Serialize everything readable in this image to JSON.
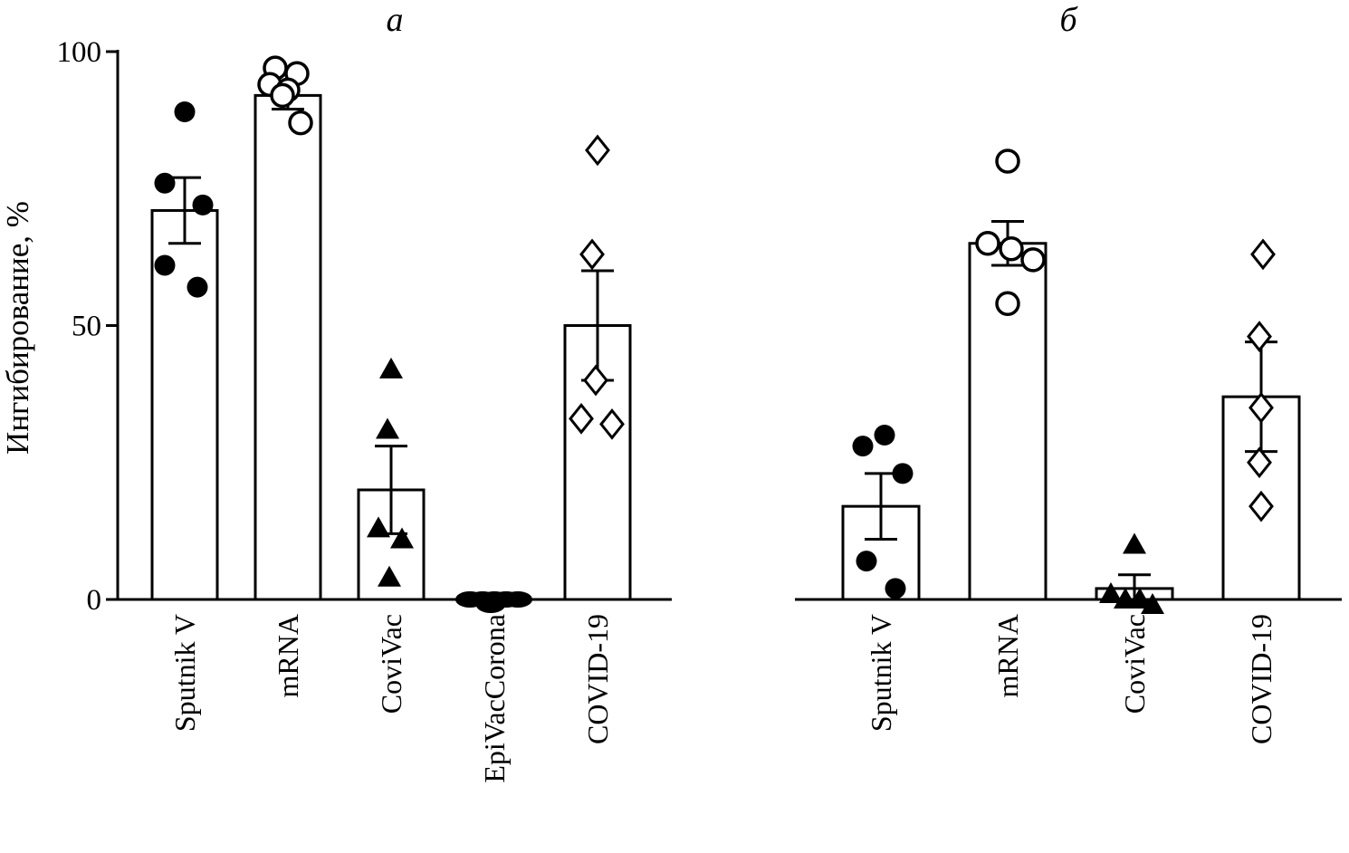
{
  "chart_data": {
    "type": "bar",
    "title": "",
    "ylabel": "Ингибирование, %",
    "ylim": [
      0,
      100
    ],
    "yticks": [
      0,
      50,
      100
    ],
    "grid": false,
    "legend": "none",
    "marker_color": "#000000",
    "bar_fill": "#ffffff",
    "bar_stroke": "#000000",
    "panels": [
      {
        "title": "а",
        "categories": [
          {
            "label": "Sputnik V",
            "marker": "filled-circle",
            "bar": 71,
            "err": 6,
            "points": [
              {
                "v": 89,
                "dx": 0
              },
              {
                "v": 76,
                "dx": -22
              },
              {
                "v": 72,
                "dx": 20
              },
              {
                "v": 61,
                "dx": -22
              },
              {
                "v": 57,
                "dx": 14
              }
            ]
          },
          {
            "label": "mRNA",
            "marker": "open-circle",
            "bar": 92,
            "err": 2.5,
            "points": [
              {
                "v": 97,
                "dx": -14
              },
              {
                "v": 96,
                "dx": 10
              },
              {
                "v": 94,
                "dx": -20
              },
              {
                "v": 93,
                "dx": 0
              },
              {
                "v": 92,
                "dx": -6
              },
              {
                "v": 87,
                "dx": 14
              }
            ]
          },
          {
            "label": "CoviVac",
            "marker": "filled-triangle",
            "bar": 20,
            "err": 8,
            "points": [
              {
                "v": 42,
                "dx": 0
              },
              {
                "v": 31,
                "dx": -4
              },
              {
                "v": 13,
                "dx": -14
              },
              {
                "v": 11,
                "dx": 12
              },
              {
                "v": 4,
                "dx": -2
              }
            ]
          },
          {
            "label": "EpiVacCorona",
            "marker": "filled-pill",
            "bar": 0,
            "err": 0,
            "points": [
              {
                "v": 0,
                "dx": -27
              },
              {
                "v": 0,
                "dx": -13
              },
              {
                "v": 0,
                "dx": 0
              },
              {
                "v": 0,
                "dx": 13
              },
              {
                "v": 0,
                "dx": 26
              },
              {
                "v": -1,
                "dx": -4
              }
            ]
          },
          {
            "label": "COVID-19",
            "marker": "open-diamond",
            "bar": 50,
            "err": 10,
            "points": [
              {
                "v": 82,
                "dx": 0
              },
              {
                "v": 63,
                "dx": -6
              },
              {
                "v": 40,
                "dx": -2
              },
              {
                "v": 33,
                "dx": -18
              },
              {
                "v": 32,
                "dx": 16
              }
            ]
          }
        ]
      },
      {
        "title": "б",
        "categories": [
          {
            "label": "Sputnik V",
            "marker": "filled-circle",
            "bar": 17,
            "err": 6,
            "points": [
              {
                "v": 30,
                "dx": 4
              },
              {
                "v": 28,
                "dx": -20
              },
              {
                "v": 23,
                "dx": 24
              },
              {
                "v": 7,
                "dx": -16
              },
              {
                "v": 2,
                "dx": 16
              }
            ]
          },
          {
            "label": "mRNA",
            "marker": "open-circle",
            "bar": 65,
            "err": 4,
            "points": [
              {
                "v": 80,
                "dx": 0
              },
              {
                "v": 65,
                "dx": -22
              },
              {
                "v": 64,
                "dx": 4
              },
              {
                "v": 62,
                "dx": 28
              },
              {
                "v": 54,
                "dx": 0
              }
            ]
          },
          {
            "label": "CoviVac",
            "marker": "filled-triangle",
            "bar": 2,
            "err": 2.5,
            "points": [
              {
                "v": 10,
                "dx": 0
              },
              {
                "v": 1,
                "dx": -26
              },
              {
                "v": 0,
                "dx": -10
              },
              {
                "v": 0,
                "dx": 6
              },
              {
                "v": -1,
                "dx": 20
              }
            ]
          },
          {
            "label": "COVID-19",
            "marker": "open-diamond",
            "bar": 37,
            "err": 10,
            "points": [
              {
                "v": 63,
                "dx": 2
              },
              {
                "v": 48,
                "dx": -2
              },
              {
                "v": 35,
                "dx": 0
              },
              {
                "v": 25,
                "dx": -2
              },
              {
                "v": 17,
                "dx": 0
              }
            ]
          }
        ]
      }
    ]
  }
}
